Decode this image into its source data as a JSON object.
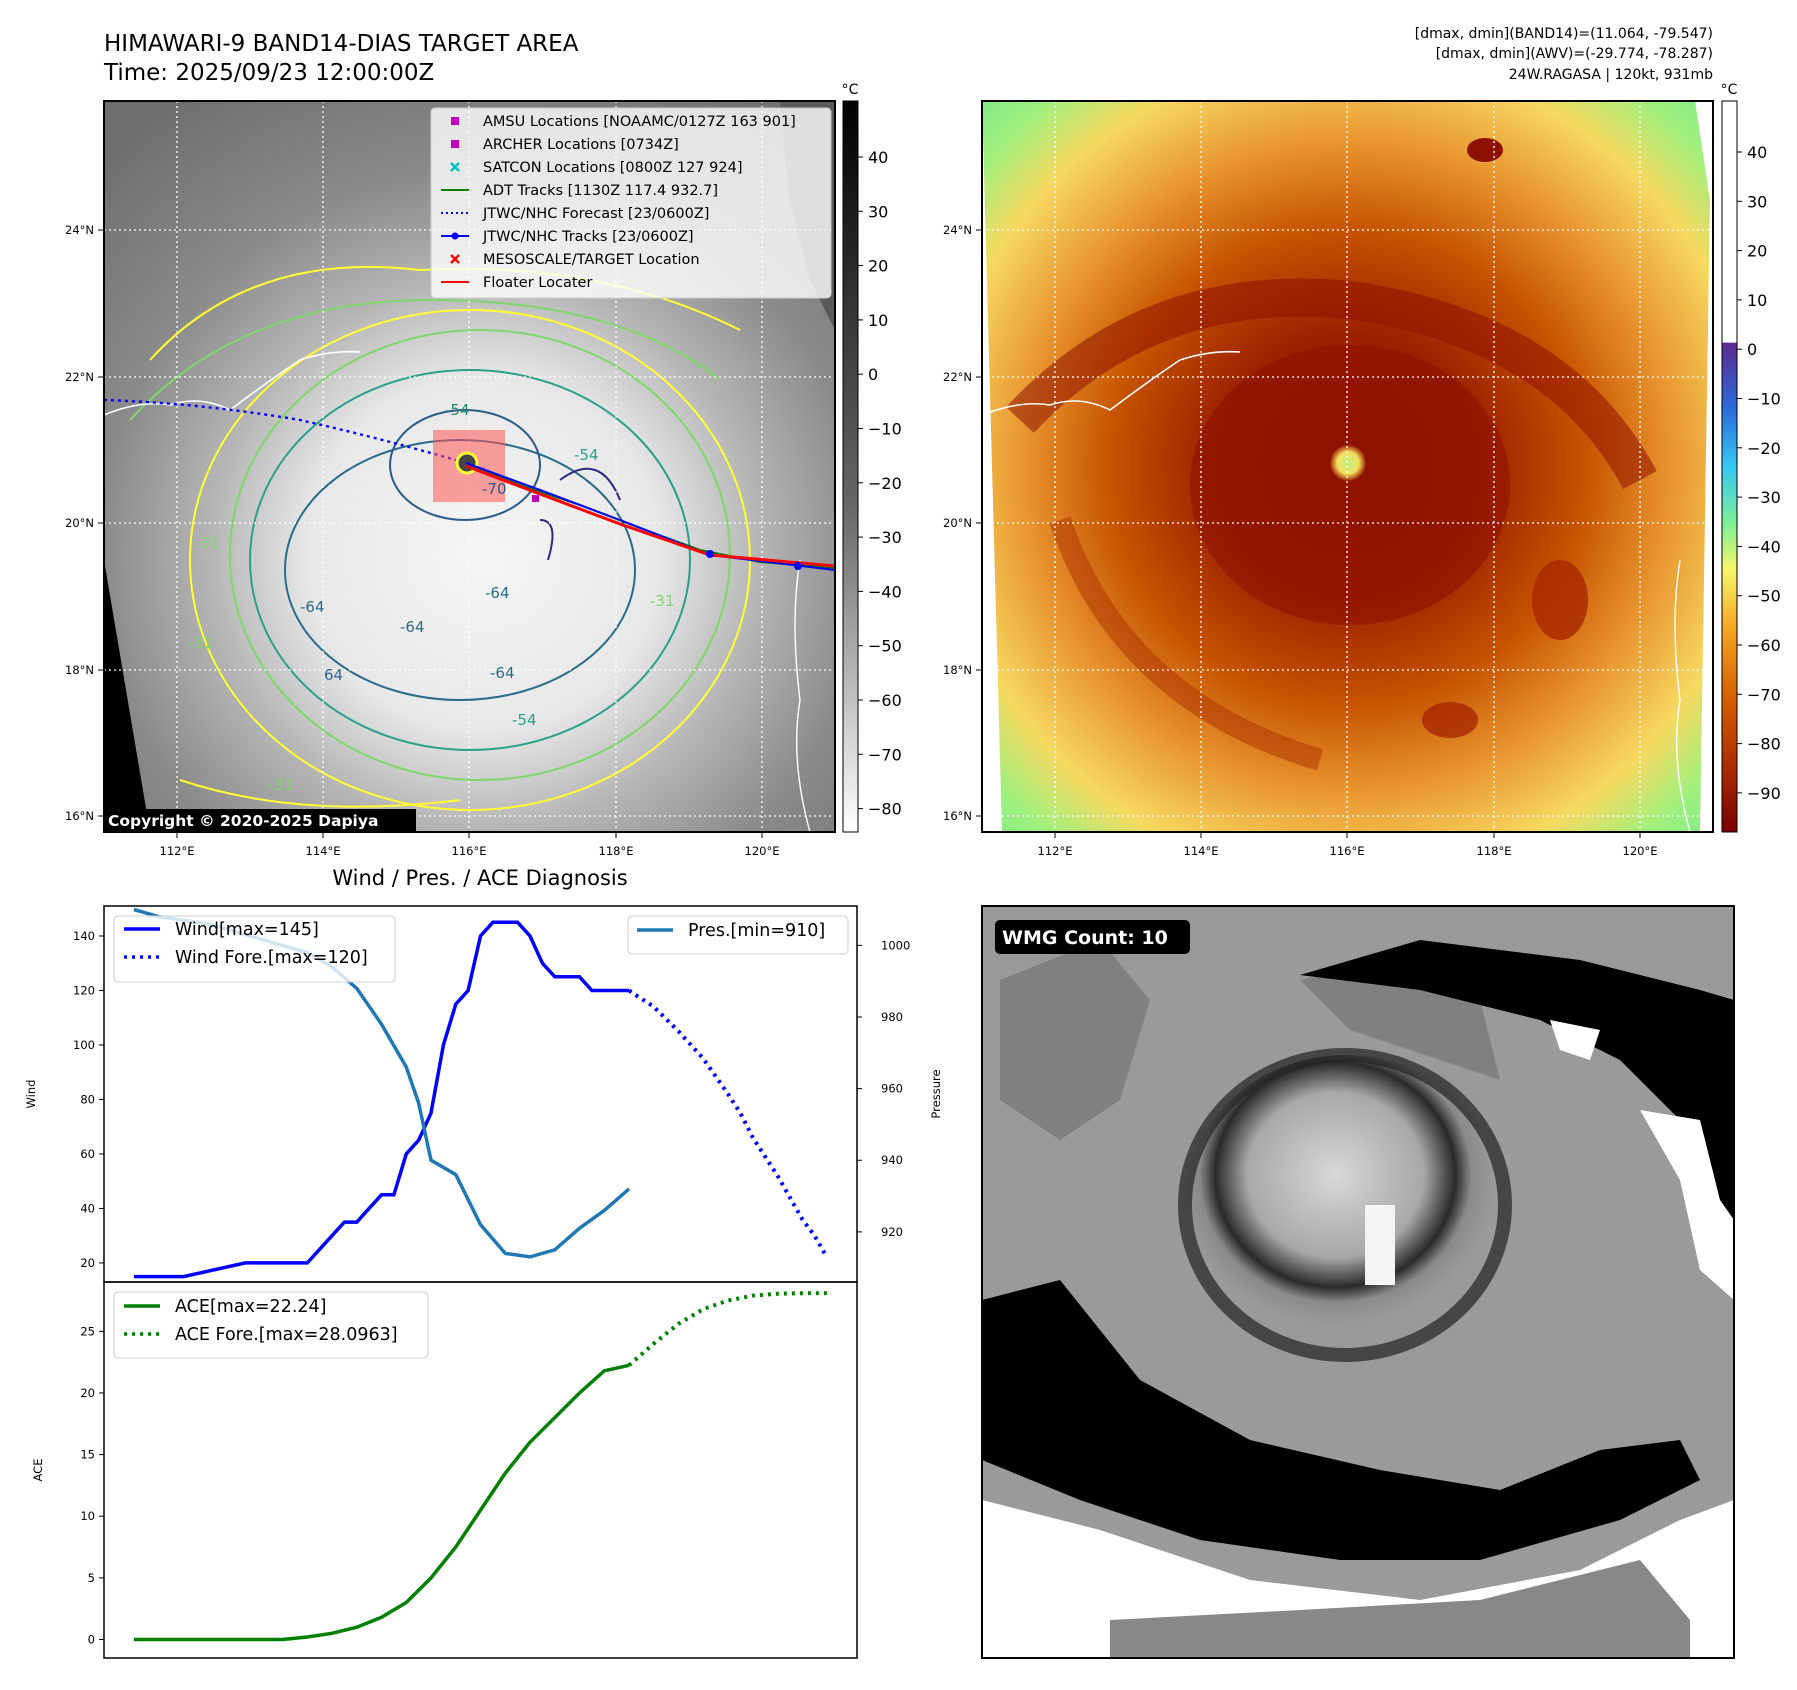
{
  "header": {
    "title_line1": "HIMAWARI-9 BAND14-DIAS TARGET AREA",
    "title_line2": "Time: 2025/09/23 12:00:00Z",
    "info_line1": "[dmax, dmin](BAND14)=(11.064, -79.547)",
    "info_line2": "[dmax, dmin](AWV)=(-29.774, -78.287)",
    "info_line3": "24W.RAGASA | 120kt, 931mb"
  },
  "map_left": {
    "copyright": "Copyright © 2020-2025 Dapiya",
    "unit_label": "°C",
    "lon_ticks": [
      "112°E",
      "114°E",
      "116°E",
      "118°E",
      "120°E"
    ],
    "lat_ticks": [
      "24°N",
      "22°N",
      "20°N",
      "18°N",
      "16°N"
    ],
    "colorbar_ticks": [
      "40",
      "30",
      "20",
      "10",
      "0",
      "−10",
      "−20",
      "−30",
      "−40",
      "−50",
      "−60",
      "−70",
      "−80"
    ],
    "contour_labels": [
      "-54",
      "-64",
      "-64",
      "-64",
      "-64",
      "-54",
      "-31",
      "-31",
      "-31",
      "-54",
      "-31",
      "64",
      "-70"
    ],
    "legend": [
      {
        "label": "AMSU Locations [NOAAMC/0127Z 163 901]",
        "color": "#bf00bf",
        "marker": "square"
      },
      {
        "label": "ARCHER Locations [0734Z]",
        "color": "#bf00bf",
        "marker": "square"
      },
      {
        "label": "SATCON Locations [0800Z 127 924]",
        "color": "#00bfbf",
        "marker": "x"
      },
      {
        "label": "ADT Tracks [1130Z 117.4 932.7]",
        "color": "#008000",
        "marker": "line"
      },
      {
        "label": "JTWC/NHC Forecast [23/0600Z]",
        "color": "#0000ff",
        "marker": "dotted"
      },
      {
        "label": "JTWC/NHC Tracks [23/0600Z]",
        "color": "#0000ff",
        "marker": "line-dot"
      },
      {
        "label": "MESOSCALE/TARGET Location",
        "color": "#ff0000",
        "marker": "x"
      },
      {
        "label": "Floater Locater",
        "color": "#ff0000",
        "marker": "line"
      }
    ]
  },
  "map_right": {
    "unit_label": "°C",
    "lon_ticks": [
      "112°E",
      "114°E",
      "116°E",
      "118°E",
      "120°E"
    ],
    "lat_ticks": [
      "24°N",
      "22°N",
      "20°N",
      "18°N",
      "16°N"
    ],
    "colorbar_ticks": [
      "40",
      "30",
      "20",
      "10",
      "0",
      "−10",
      "−20",
      "−30",
      "−40",
      "−50",
      "−60",
      "−70",
      "−80",
      "−90"
    ]
  },
  "wmg": {
    "label": "WMG Count: 10"
  },
  "chart_data": [
    {
      "type": "line",
      "title": "Wind / Pres. / ACE Diagnosis",
      "ylabel": "Wind",
      "y2label": "Pressure",
      "ylim": [
        13,
        151
      ],
      "y2lim": [
        906,
        1011
      ],
      "yticks": [
        20,
        40,
        60,
        80,
        100,
        120,
        140
      ],
      "y2ticks": [
        920,
        940,
        960,
        980,
        1000
      ],
      "x_range": [
        0,
        56
      ],
      "grid": false,
      "series": [
        {
          "name": "Wind[max=145]",
          "color": "#0000ff",
          "style": "solid",
          "x": [
            0,
            3,
            4,
            9,
            10,
            13,
            14,
            15,
            16,
            17,
            18,
            19,
            20,
            21,
            22,
            23,
            24,
            25,
            26,
            27,
            28,
            29,
            30,
            31,
            32,
            33,
            34,
            36,
            37,
            38,
            39,
            40
          ],
          "values": [
            15,
            15,
            15,
            20,
            20,
            20,
            20,
            25,
            30,
            35,
            35,
            40,
            45,
            45,
            60,
            65,
            75,
            100,
            115,
            120,
            140,
            145,
            145,
            145,
            140,
            130,
            125,
            125,
            120,
            120,
            120,
            120
          ]
        },
        {
          "name": "Wind Fore.[max=120]",
          "color": "#0000ff",
          "style": "dotted",
          "x": [
            40,
            42,
            44,
            46,
            48,
            49,
            50,
            52,
            54,
            55,
            56
          ],
          "values": [
            120,
            114,
            105,
            95,
            82,
            75,
            66,
            52,
            36,
            30,
            22
          ]
        },
        {
          "name": "Pres.[min=910]",
          "color": "#1f77b4",
          "style": "solid",
          "x": [
            0,
            2,
            4,
            6,
            8,
            10,
            12,
            14,
            16,
            18,
            20,
            22,
            23,
            24,
            26,
            28,
            30,
            32,
            34,
            36,
            38,
            40
          ],
          "values": [
            1010,
            1008,
            1007,
            1006,
            1004,
            1002,
            1000,
            998,
            994,
            988,
            978,
            966,
            956,
            940,
            936,
            922,
            914,
            913,
            915,
            921,
            926,
            932
          ]
        }
      ]
    },
    {
      "type": "line",
      "ylabel": "ACE",
      "ylim": [
        -1.5,
        29
      ],
      "yticks": [
        0,
        5,
        10,
        15,
        20,
        25
      ],
      "x_range": [
        0,
        56
      ],
      "grid": false,
      "series": [
        {
          "name": "ACE[max=22.24]",
          "color": "#008000",
          "style": "solid",
          "x": [
            0,
            6,
            12,
            14,
            16,
            18,
            20,
            22,
            24,
            26,
            28,
            30,
            32,
            34,
            36,
            38,
            40
          ],
          "values": [
            0,
            0,
            0,
            0.2,
            0.5,
            1,
            1.8,
            3,
            5,
            7.5,
            10.5,
            13.5,
            16,
            18,
            20,
            21.8,
            22.24
          ]
        },
        {
          "name": "ACE Fore.[max=28.0963]",
          "color": "#008000",
          "style": "dotted",
          "x": [
            40,
            42,
            44,
            46,
            48,
            50,
            52,
            54,
            56
          ],
          "values": [
            22.24,
            24,
            25.6,
            26.8,
            27.5,
            27.9,
            28.05,
            28.09,
            28.0963
          ]
        }
      ]
    }
  ]
}
